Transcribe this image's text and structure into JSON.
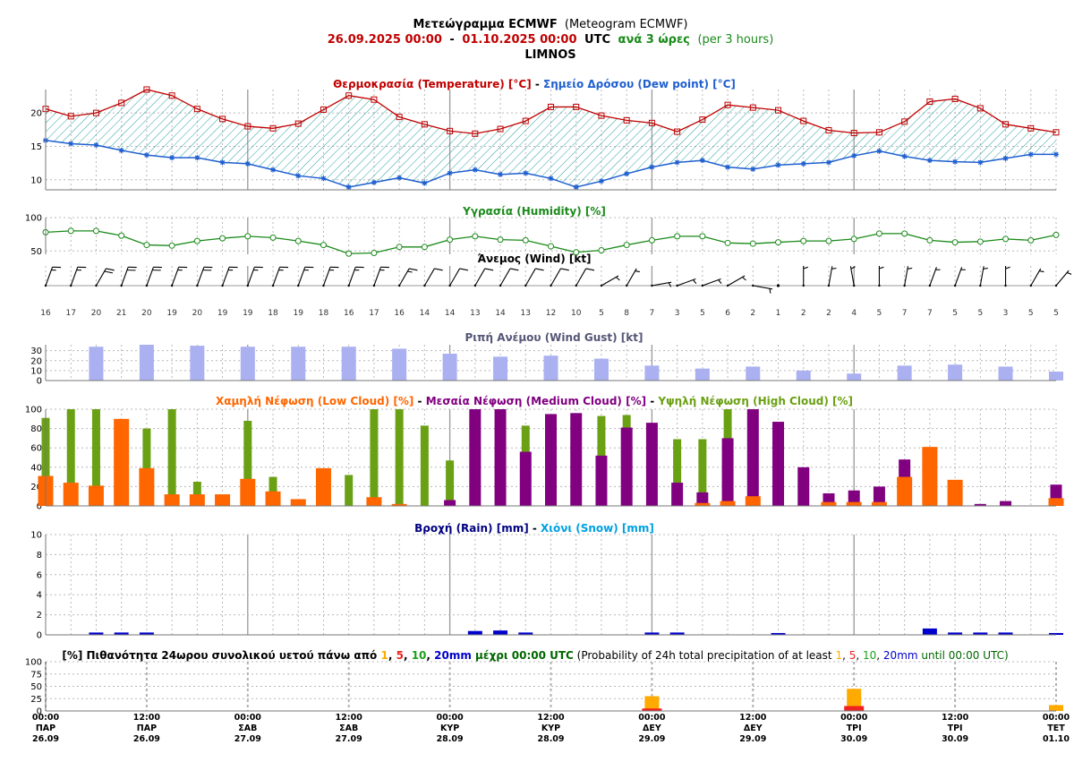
{
  "header": {
    "title_main": "Μετεώγραμμα ECMWF",
    "title_sub": "(Meteogram ECMWF)",
    "period_from": "26.09.2025 00:00",
    "period_sep": "-",
    "period_to": "01.10.2025 00:00",
    "period_utc": "UTC",
    "step_gr": "ανά 3 ώρες",
    "step_en": "(per 3 hours)",
    "location": "LIMNOS"
  },
  "colors": {
    "temperature": "#c00000",
    "dew_point": "#1f5fd0",
    "hatch": "#2aa0a0",
    "humidity": "#1a8a1a",
    "wind_title": "#000000",
    "gust": "#aab0f0",
    "gust_title": "#555577",
    "low_cloud": "#ff6600",
    "medium_cloud": "#800080",
    "high_cloud": "#6aa013",
    "rain": "#0000cc",
    "snow": "#00a0e0",
    "p1": "#ffaa00",
    "p5": "#ee2222",
    "p10": "#1aa01a",
    "p20": "#0000cc",
    "grid": "#aaaaaa"
  },
  "chart_data": [
    {
      "id": "temperature",
      "type": "line",
      "title": "Θερμοκρασία (Temperature) [°C] - Σημείο Δρόσου (Dew point) [°C]",
      "title_parts": [
        "Θερμοκρασία (Temperature) [°C]",
        " - ",
        "Σημείο Δρόσου (Dew point) [°C]"
      ],
      "x_hours_from_start": [
        0,
        3,
        6,
        9,
        12,
        15,
        18,
        21,
        24,
        27,
        30,
        33,
        36,
        39,
        42,
        45,
        48,
        51,
        54,
        57,
        60,
        63,
        66,
        69,
        72,
        75,
        78,
        81,
        84,
        87,
        90,
        93,
        96,
        99,
        102,
        105,
        108,
        111,
        114,
        117,
        120
      ],
      "y_ticks": [
        10,
        15,
        20
      ],
      "ylim": [
        8.5,
        23.5
      ],
      "series": [
        {
          "name": "Θερμοκρασία (Temperature) [°C]",
          "values": [
            20.6,
            19.5,
            20.0,
            21.5,
            23.5,
            22.6,
            20.6,
            19.1,
            18.0,
            17.7,
            18.4,
            20.5,
            22.6,
            22.0,
            19.4,
            18.3,
            17.3,
            16.9,
            17.6,
            18.8,
            20.9,
            20.9,
            19.6,
            18.9,
            18.5,
            17.2,
            19.0,
            21.2,
            20.8,
            20.4,
            18.8,
            17.4,
            17.0,
            17.1,
            18.7,
            21.7,
            22.1,
            20.7,
            18.3,
            17.7,
            17.1
          ]
        },
        {
          "name": "Σημείο Δρόσου (Dew point) [°C]",
          "values": [
            15.9,
            15.4,
            15.2,
            14.4,
            13.7,
            13.3,
            13.3,
            12.6,
            12.4,
            11.5,
            10.6,
            10.2,
            8.9,
            9.6,
            10.3,
            9.5,
            11.0,
            11.5,
            10.8,
            11.0,
            10.2,
            8.9,
            9.8,
            10.9,
            11.9,
            12.6,
            12.9,
            11.9,
            11.6,
            12.2,
            12.4,
            12.6,
            13.6,
            14.3,
            13.5,
            12.9,
            12.7,
            12.6,
            13.2,
            13.8,
            13.8
          ]
        }
      ]
    },
    {
      "id": "humidity",
      "type": "line",
      "title": "Υγρασία (Humidity) [%]",
      "y_ticks": [
        50,
        100
      ],
      "ylim": [
        45,
        100
      ],
      "series": [
        {
          "name": "Υγρασία (Humidity) [%]",
          "values": [
            78,
            80,
            80,
            73,
            59,
            58,
            65,
            69,
            72,
            70,
            65,
            59,
            46,
            47,
            56,
            56,
            67,
            72,
            67,
            66,
            57,
            48,
            51,
            59,
            66,
            72,
            72,
            62,
            61,
            63,
            65,
            65,
            68,
            76,
            76,
            66,
            63,
            64,
            68,
            66,
            74
          ]
        }
      ]
    },
    {
      "id": "wind",
      "type": "table",
      "title": "Άνεμος (Wind) [kt]",
      "speed_kt": [
        16,
        17,
        20,
        21,
        20,
        19,
        20,
        19,
        19,
        18,
        19,
        18,
        16,
        17,
        16,
        14,
        14,
        13,
        14,
        13,
        12,
        10,
        5,
        8,
        7,
        3,
        5,
        6,
        2,
        1,
        2,
        2,
        4,
        5,
        7,
        7,
        5,
        5,
        3,
        5,
        5
      ],
      "from_direction_deg": [
        20,
        20,
        30,
        20,
        20,
        20,
        20,
        20,
        20,
        20,
        20,
        20,
        20,
        20,
        30,
        30,
        30,
        30,
        30,
        30,
        30,
        30,
        60,
        30,
        80,
        70,
        70,
        60,
        100,
        90,
        0,
        10,
        350,
        0,
        10,
        20,
        20,
        10,
        0,
        30,
        40
      ]
    },
    {
      "id": "gust",
      "type": "bar",
      "title": "Ριπή Ανέμου (Wind Gust) [kt]",
      "x_hours_from_start": [
        6,
        12,
        18,
        24,
        30,
        36,
        42,
        48,
        54,
        60,
        66,
        72,
        78,
        84,
        90,
        96,
        102,
        108,
        114,
        120
      ],
      "values": [
        34,
        36,
        35,
        34,
        34,
        34,
        32,
        27,
        24,
        25,
        22,
        15,
        12,
        14,
        10,
        7,
        15,
        16,
        14,
        9
      ],
      "y_ticks": [
        0,
        10,
        20,
        30
      ],
      "ylim": [
        0,
        36
      ]
    },
    {
      "id": "cloud",
      "type": "bar",
      "title": "Χαμηλή Νέφωση (Low Cloud) [%] - Μεσαία Νέφωση (Medium Cloud) [%] - Υψηλή Νέφωση (High Cloud) [%]",
      "title_parts": [
        "Χαμηλή Νέφωση (Low Cloud) [%]",
        " - ",
        "Μεσαία Νέφωση (Medium Cloud) [%]",
        " - ",
        "Υψηλή Νέφωση (High Cloud) [%]"
      ],
      "y_ticks": [
        0,
        20,
        40,
        60,
        80,
        100
      ],
      "ylim": [
        0,
        100
      ],
      "series": [
        {
          "name": "Χαμηλή Νέφωση (Low Cloud) [%]",
          "values": [
            31,
            24,
            21,
            90,
            39,
            12,
            12,
            12,
            28,
            15,
            7,
            39,
            0,
            9,
            2,
            0,
            0,
            0,
            0,
            0,
            0,
            0,
            0,
            0,
            0,
            0,
            3,
            5,
            10,
            0,
            0,
            4,
            4,
            4,
            30,
            61,
            27,
            0,
            0,
            0,
            8
          ]
        },
        {
          "name": "Μεσαία Νέφωση (Medium Cloud) [%]",
          "values": [
            0,
            0,
            0,
            0,
            0,
            0,
            0,
            0,
            0,
            0,
            0,
            0,
            0,
            0,
            0,
            0,
            6,
            100,
            100,
            56,
            95,
            96,
            52,
            81,
            86,
            24,
            14,
            70,
            100,
            87,
            40,
            13,
            16,
            20,
            48,
            0,
            0,
            2,
            5,
            0,
            22
          ]
        },
        {
          "name": "Υψηλή Νέφωση (High Cloud) [%]",
          "values": [
            91,
            100,
            100,
            0,
            80,
            100,
            25,
            0,
            88,
            30,
            0,
            0,
            32,
            100,
            100,
            83,
            47,
            0,
            0,
            83,
            0,
            0,
            93,
            94,
            0,
            69,
            69,
            100,
            0,
            0,
            0,
            0,
            0,
            0,
            0,
            0,
            0,
            0,
            0,
            0,
            0
          ]
        }
      ]
    },
    {
      "id": "precip",
      "type": "bar",
      "title": "Βροχή (Rain) [mm] - Χιόνι (Snow) [mm]",
      "title_parts": [
        "Βροχή (Rain) [mm]",
        " - ",
        "Χιόνι (Snow) [mm]"
      ],
      "y_ticks": [
        0,
        2,
        4,
        6,
        8,
        10
      ],
      "ylim": [
        0,
        10
      ],
      "series": [
        {
          "name": "Βροχή (Rain) [mm]",
          "values": [
            0,
            0,
            0.1,
            0.1,
            0.1,
            0,
            0,
            0,
            0,
            0,
            0,
            0,
            0,
            0,
            0,
            0,
            0,
            0.25,
            0.3,
            0.1,
            0,
            0,
            0,
            0,
            0.1,
            0.1,
            0,
            0,
            0,
            0.05,
            0,
            0,
            0,
            0,
            0,
            0.5,
            0.1,
            0.1,
            0.1,
            0,
            0.05
          ]
        },
        {
          "name": "Χιόνι (Snow) [mm]",
          "values": [
            0,
            0,
            0,
            0,
            0,
            0,
            0,
            0,
            0,
            0,
            0,
            0,
            0,
            0,
            0,
            0,
            0,
            0,
            0,
            0,
            0,
            0,
            0,
            0,
            0,
            0,
            0,
            0,
            0,
            0,
            0,
            0,
            0,
            0,
            0,
            0,
            0,
            0,
            0,
            0,
            0
          ]
        }
      ]
    },
    {
      "id": "probability",
      "type": "bar",
      "title": "[%] Πιθανότητα 24ωρου συνολικού υετού πάνω από 1, 5, 10, 20mm μέχρι 00:00 UTC (Probability of 24h total precipitation of at least 1, 5, 10, 20mm until 00:00 UTC)",
      "title_gr_a": "[%] Πιθανότητα 24ωρου συνολικού υετού πάνω από ",
      "title_gr_b": " μέχρι 00:00 UTC",
      "title_en_a": " (Probability of 24h total precipitation of at least ",
      "title_en_b": " until 00:00 UTC)",
      "threshold_labels": [
        "1",
        "5",
        "10",
        "20mm"
      ],
      "x_hours_from_start": [
        72,
        96,
        120
      ],
      "series": [
        {
          "name": "1",
          "values": [
            30,
            45,
            12
          ]
        },
        {
          "name": "5",
          "values": [
            5,
            10,
            0
          ]
        },
        {
          "name": "10",
          "values": [
            0,
            0,
            0
          ]
        },
        {
          "name": "20mm",
          "values": [
            0,
            0,
            0
          ]
        }
      ],
      "y_ticks": [
        0,
        25,
        50,
        75,
        100
      ],
      "ylim": [
        0,
        100
      ]
    }
  ],
  "x_axis": {
    "tick_labels": [
      {
        "time": "00:00",
        "day": "ΠΑΡ",
        "date": "26.09"
      },
      {
        "time": "12:00",
        "day": "ΠΑΡ",
        "date": "26.09"
      },
      {
        "time": "00:00",
        "day": "ΣΑΒ",
        "date": "27.09"
      },
      {
        "time": "12:00",
        "day": "ΣΑΒ",
        "date": "27.09"
      },
      {
        "time": "00:00",
        "day": "ΚΥΡ",
        "date": "28.09"
      },
      {
        "time": "12:00",
        "day": "ΚΥΡ",
        "date": "28.09"
      },
      {
        "time": "00:00",
        "day": "ΔΕΥ",
        "date": "29.09"
      },
      {
        "time": "12:00",
        "day": "ΔΕΥ",
        "date": "29.09"
      },
      {
        "time": "00:00",
        "day": "ΤΡΙ",
        "date": "30.09"
      },
      {
        "time": "12:00",
        "day": "ΤΡΙ",
        "date": "30.09"
      },
      {
        "time": "00:00",
        "day": "ΤΕΤ",
        "date": "01.10"
      }
    ]
  }
}
